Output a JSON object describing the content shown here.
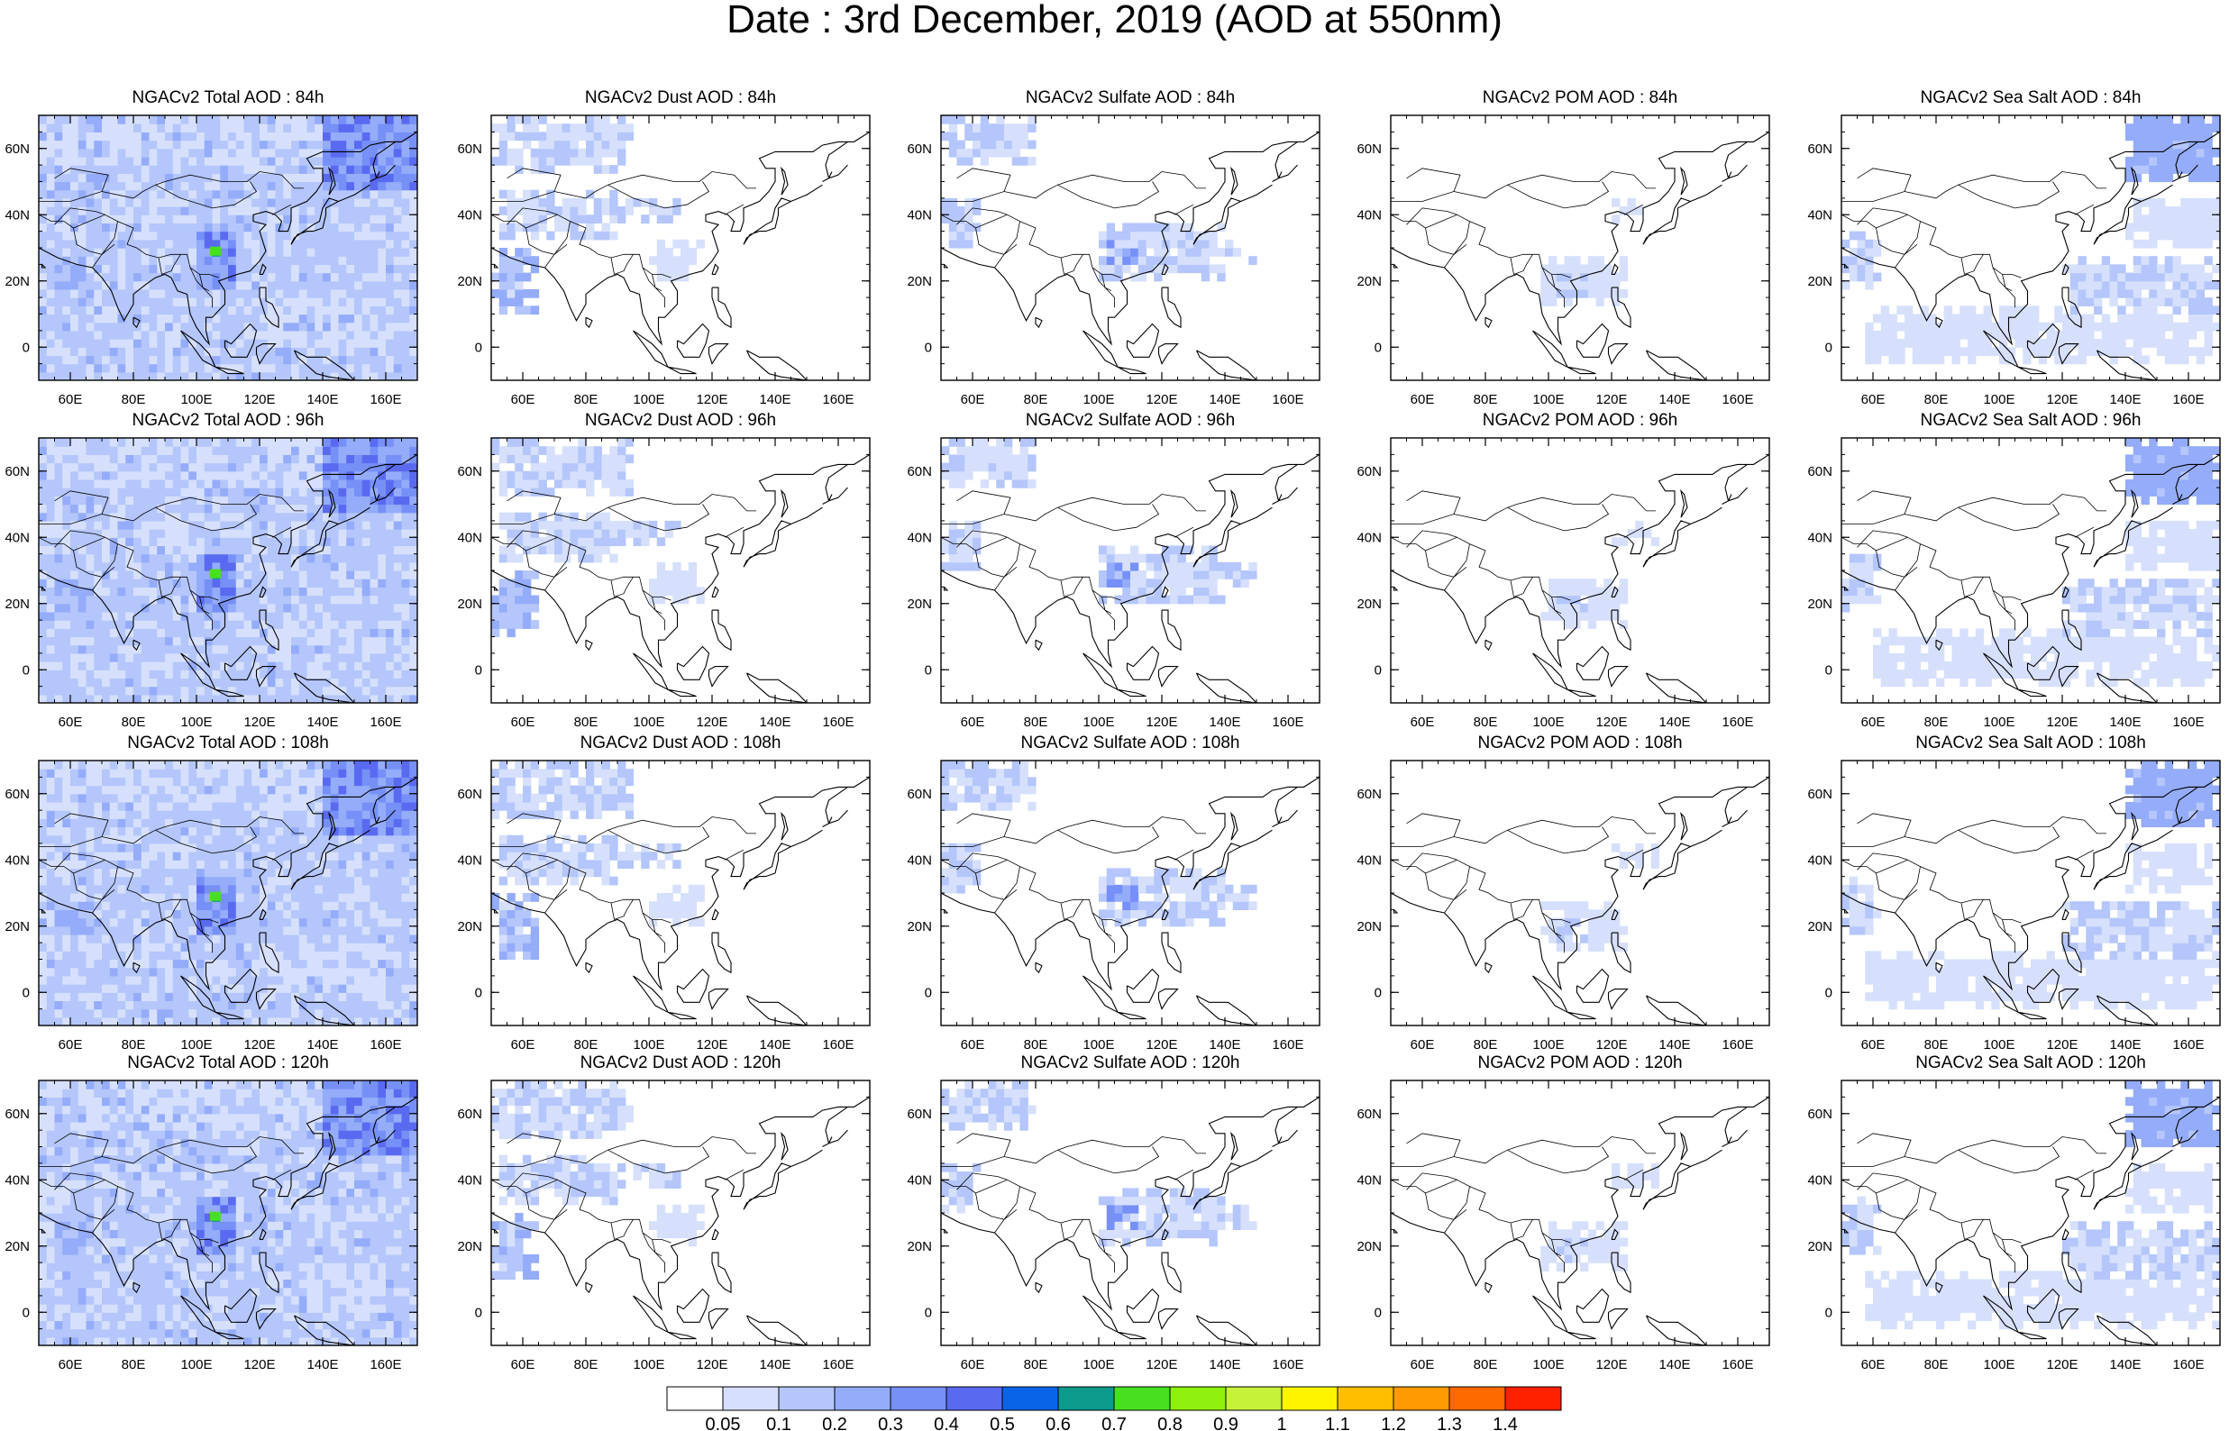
{
  "title": "Date : 3rd December, 2019 (AOD at 550nm)",
  "axes": {
    "lon_ticks": [
      "60E",
      "80E",
      "100E",
      "120E",
      "140E",
      "160E"
    ],
    "lon_values": [
      60,
      80,
      100,
      120,
      140,
      160
    ],
    "lat_ticks": [
      "60N",
      "40N",
      "20N",
      "0"
    ],
    "lat_values": [
      60,
      40,
      20,
      0
    ],
    "lon_range": [
      50,
      170
    ],
    "lat_range": [
      -10,
      70
    ]
  },
  "species": [
    "Total",
    "Dust",
    "Sulfate",
    "POM",
    "Sea Salt"
  ],
  "forecast_hours": [
    "84h",
    "96h",
    "108h",
    "120h"
  ],
  "panel_titles": [
    [
      "NGACv2 Total AOD : 84h",
      "NGACv2 Dust AOD : 84h",
      "NGACv2 Sulfate AOD : 84h",
      "NGACv2 POM AOD : 84h",
      "NGACv2 Sea Salt AOD : 84h"
    ],
    [
      "NGACv2 Total AOD : 96h",
      "NGACv2 Dust AOD : 96h",
      "NGACv2 Sulfate AOD : 96h",
      "NGACv2 POM AOD : 96h",
      "NGACv2 Sea Salt AOD : 96h"
    ],
    [
      "NGACv2 Total AOD : 108h",
      "NGACv2 Dust AOD : 108h",
      "NGACv2 Sulfate AOD : 108h",
      "NGACv2 POM AOD : 108h",
      "NGACv2 Sea Salt AOD : 108h"
    ],
    [
      "NGACv2 Total AOD : 120h",
      "NGACv2 Dust AOD : 120h",
      "NGACv2 Sulfate AOD : 120h",
      "NGACv2 POM AOD : 120h",
      "NGACv2 Sea Salt  AOD : 120h"
    ]
  ],
  "colorbar": {
    "labels": [
      "0.05",
      "0.1",
      "0.2",
      "0.3",
      "0.4",
      "0.5",
      "0.6",
      "0.7",
      "0.8",
      "0.9",
      "1",
      "1.1",
      "1.2",
      "1.3",
      "1.4"
    ],
    "colors": [
      "#ffffff",
      "#d6e0fc",
      "#b4c6fb",
      "#94acfa",
      "#7790f7",
      "#5a6af0",
      "#0a64e8",
      "#0b9a8c",
      "#47e020",
      "#8ef00c",
      "#c6f23a",
      "#fff400",
      "#ffbe00",
      "#ff9a00",
      "#ff6a00",
      "#ff2000"
    ]
  },
  "features": {
    "Total": {
      "base": 2,
      "lows": [
        [
          -10,
          170,
          56,
          70,
          1
        ],
        [
          70,
          98,
          38,
          47,
          1
        ],
        [
          122,
          160,
          0,
          16,
          1
        ],
        [
          50,
          60,
          35,
          46,
          1
        ]
      ],
      "highs": [
        [
          140,
          170,
          48,
          70,
          4,
          5
        ],
        [
          100,
          112,
          18,
          36,
          4,
          5
        ],
        [
          104,
          108,
          27,
          31,
          8,
          7
        ],
        [
          56,
          66,
          18,
          28,
          3,
          3
        ]
      ],
      "hot": [
        106,
        29
      ]
    },
    "Dust": {
      "blobs": [
        [
          50,
          95,
          52,
          70,
          2,
          1
        ],
        [
          52,
          90,
          32,
          48,
          2,
          1
        ],
        [
          50,
          64,
          10,
          30,
          3,
          2
        ],
        [
          70,
          110,
          38,
          46,
          2,
          1
        ],
        [
          100,
          118,
          20,
          32,
          1,
          1
        ]
      ]
    },
    "Sulfate": {
      "blobs": [
        [
          50,
          80,
          55,
          70,
          2,
          1
        ],
        [
          100,
          140,
          20,
          38,
          2,
          1
        ],
        [
          103,
          112,
          25,
          33,
          4,
          3
        ],
        [
          50,
          62,
          30,
          45,
          2,
          1
        ],
        [
          110,
          150,
          24,
          32,
          2,
          1
        ]
      ]
    },
    "POM": {
      "blobs": [
        [
          98,
          125,
          12,
          28,
          1,
          1
        ],
        [
          102,
          112,
          16,
          22,
          2,
          1
        ],
        [
          120,
          135,
          38,
          45,
          1,
          1
        ]
      ]
    },
    "Sea Salt": {
      "blobs": [
        [
          140,
          170,
          50,
          70,
          3,
          3
        ],
        [
          50,
          62,
          18,
          35,
          2,
          1
        ],
        [
          58,
          170,
          -5,
          12,
          1,
          1
        ],
        [
          120,
          170,
          10,
          28,
          2,
          1
        ],
        [
          140,
          170,
          30,
          45,
          1,
          1
        ]
      ]
    }
  }
}
